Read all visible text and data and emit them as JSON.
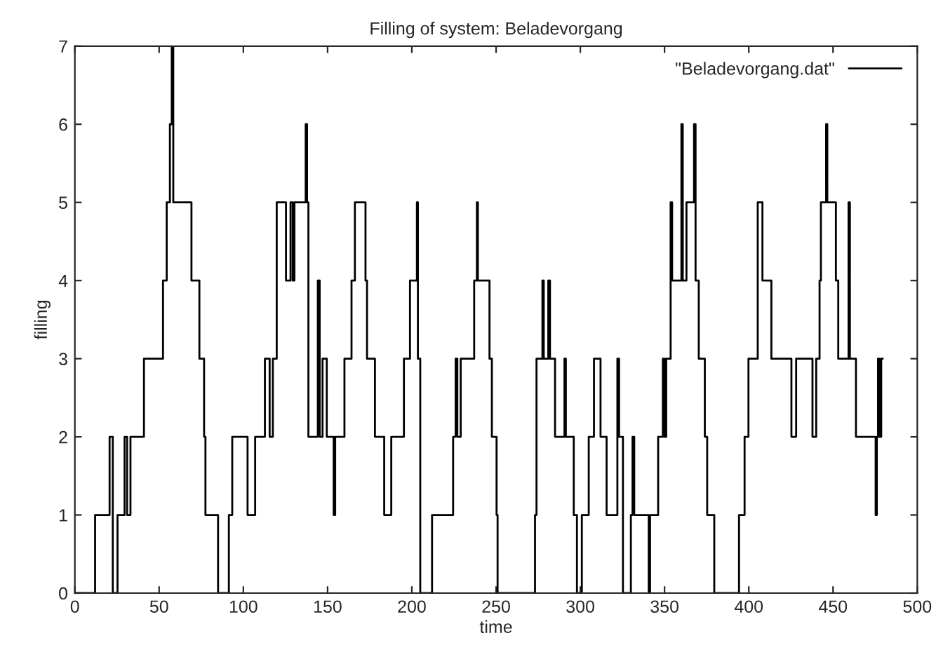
{
  "chart_data": {
    "type": "step",
    "title": "Filling of system: Beladevorgang",
    "xlabel": "time",
    "ylabel": "filling",
    "xlim": [
      0,
      500
    ],
    "xticks": [
      0,
      50,
      100,
      150,
      200,
      250,
      300,
      350,
      400,
      450,
      500
    ],
    "ylim": [
      0,
      7
    ],
    "yticks": [
      0,
      1,
      2,
      3,
      4,
      5,
      6,
      7
    ],
    "grid": false,
    "legend": "top right",
    "series": [
      {
        "name": "\"Beladevorgang.dat\"",
        "color": "#000000",
        "x": [
          0,
          12,
          20.6,
          22.5,
          25.3,
          29.5,
          31,
          33,
          41,
          52.3,
          54.5,
          56.4,
          57.5,
          58.4,
          69.2,
          73.9,
          76.7,
          77.5,
          85,
          91.4,
          93.4,
          102.5,
          107,
          112.8,
          115.6,
          117.5,
          119.8,
          125.3,
          128,
          129.3,
          130.3,
          137,
          137.8,
          138.6,
          144.2,
          145.3,
          147,
          149.5,
          153.6,
          154.5,
          160,
          164.2,
          166.2,
          172.5,
          173.4,
          178.1,
          183.6,
          187.8,
          195.3,
          198.9,
          203,
          203.6,
          205,
          212,
          224.5,
          226,
          227,
          229,
          237,
          238.6,
          239.2,
          246.1,
          247.5,
          250.3,
          250.9,
          273.1,
          274,
          277.5,
          278.3,
          281,
          282,
          285,
          290.6,
          291.4,
          296.1,
          298,
          300.9,
          305,
          308.1,
          312,
          315.6,
          322,
          323,
          325.3,
          330,
          331,
          332,
          340.6,
          341.4,
          346.2,
          349,
          350,
          351,
          353.6,
          354.5,
          360,
          360.8,
          363,
          367.5,
          368.4,
          370.3,
          373.9,
          375.3,
          379.5,
          394.2,
          397.5,
          399.8,
          405.3,
          408.1,
          413.4,
          425.3,
          428.1,
          437.8,
          440,
          442,
          442.8,
          445.9,
          446.6,
          451.7,
          453.1,
          459.2,
          460,
          463.6,
          475.3,
          476,
          476.7,
          477.5,
          478.6,
          479.5
        ],
        "values": [
          0,
          1,
          2,
          0,
          1,
          2,
          1,
          2,
          3,
          4,
          5,
          6,
          7,
          5,
          4,
          3,
          2,
          1,
          0,
          1,
          2,
          1,
          2,
          3,
          2,
          3,
          5,
          4,
          5,
          4,
          5,
          6,
          5,
          2,
          4,
          2,
          3,
          2,
          1,
          2,
          3,
          4,
          5,
          4,
          3,
          2,
          1,
          2,
          3,
          4,
          5,
          3,
          0,
          1,
          2,
          3,
          2,
          3,
          4,
          5,
          4,
          3,
          2,
          1,
          0,
          1,
          3,
          4,
          3,
          4,
          3,
          2,
          3,
          2,
          1,
          0,
          1,
          2,
          3,
          2,
          1,
          3,
          2,
          0,
          1,
          2,
          1,
          0,
          1,
          2,
          3,
          2,
          3,
          5,
          4,
          6,
          4,
          5,
          6,
          4,
          3,
          2,
          1,
          0,
          1,
          2,
          3,
          5,
          4,
          3,
          2,
          3,
          2,
          3,
          4,
          5,
          6,
          5,
          4,
          3,
          5,
          3,
          2,
          1,
          2,
          3,
          2,
          3,
          3
        ]
      }
    ]
  }
}
